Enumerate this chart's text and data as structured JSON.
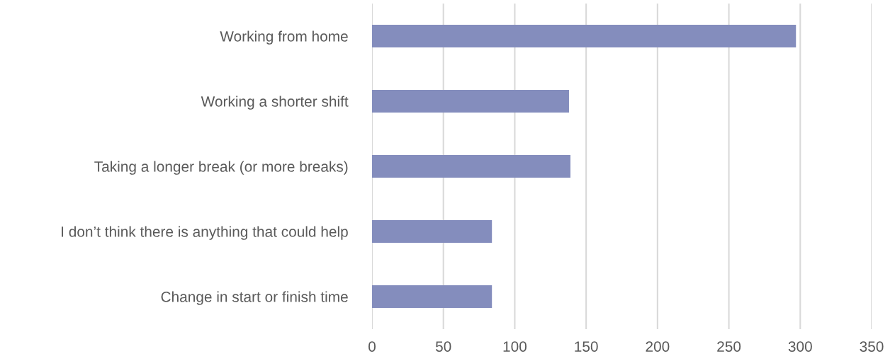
{
  "chart_data": {
    "type": "bar",
    "orientation": "horizontal",
    "categories": [
      "Working from home",
      "Working a shorter shift",
      "Taking a longer break (or more breaks)",
      "I don’t think there is anything that could help",
      "Change in start or finish time"
    ],
    "values": [
      297,
      138,
      139,
      84,
      84
    ],
    "color": "#848dbd",
    "xlim": [
      0,
      350
    ],
    "xticks": [
      0,
      50,
      100,
      150,
      200,
      250,
      300,
      350
    ],
    "grid": "x"
  }
}
